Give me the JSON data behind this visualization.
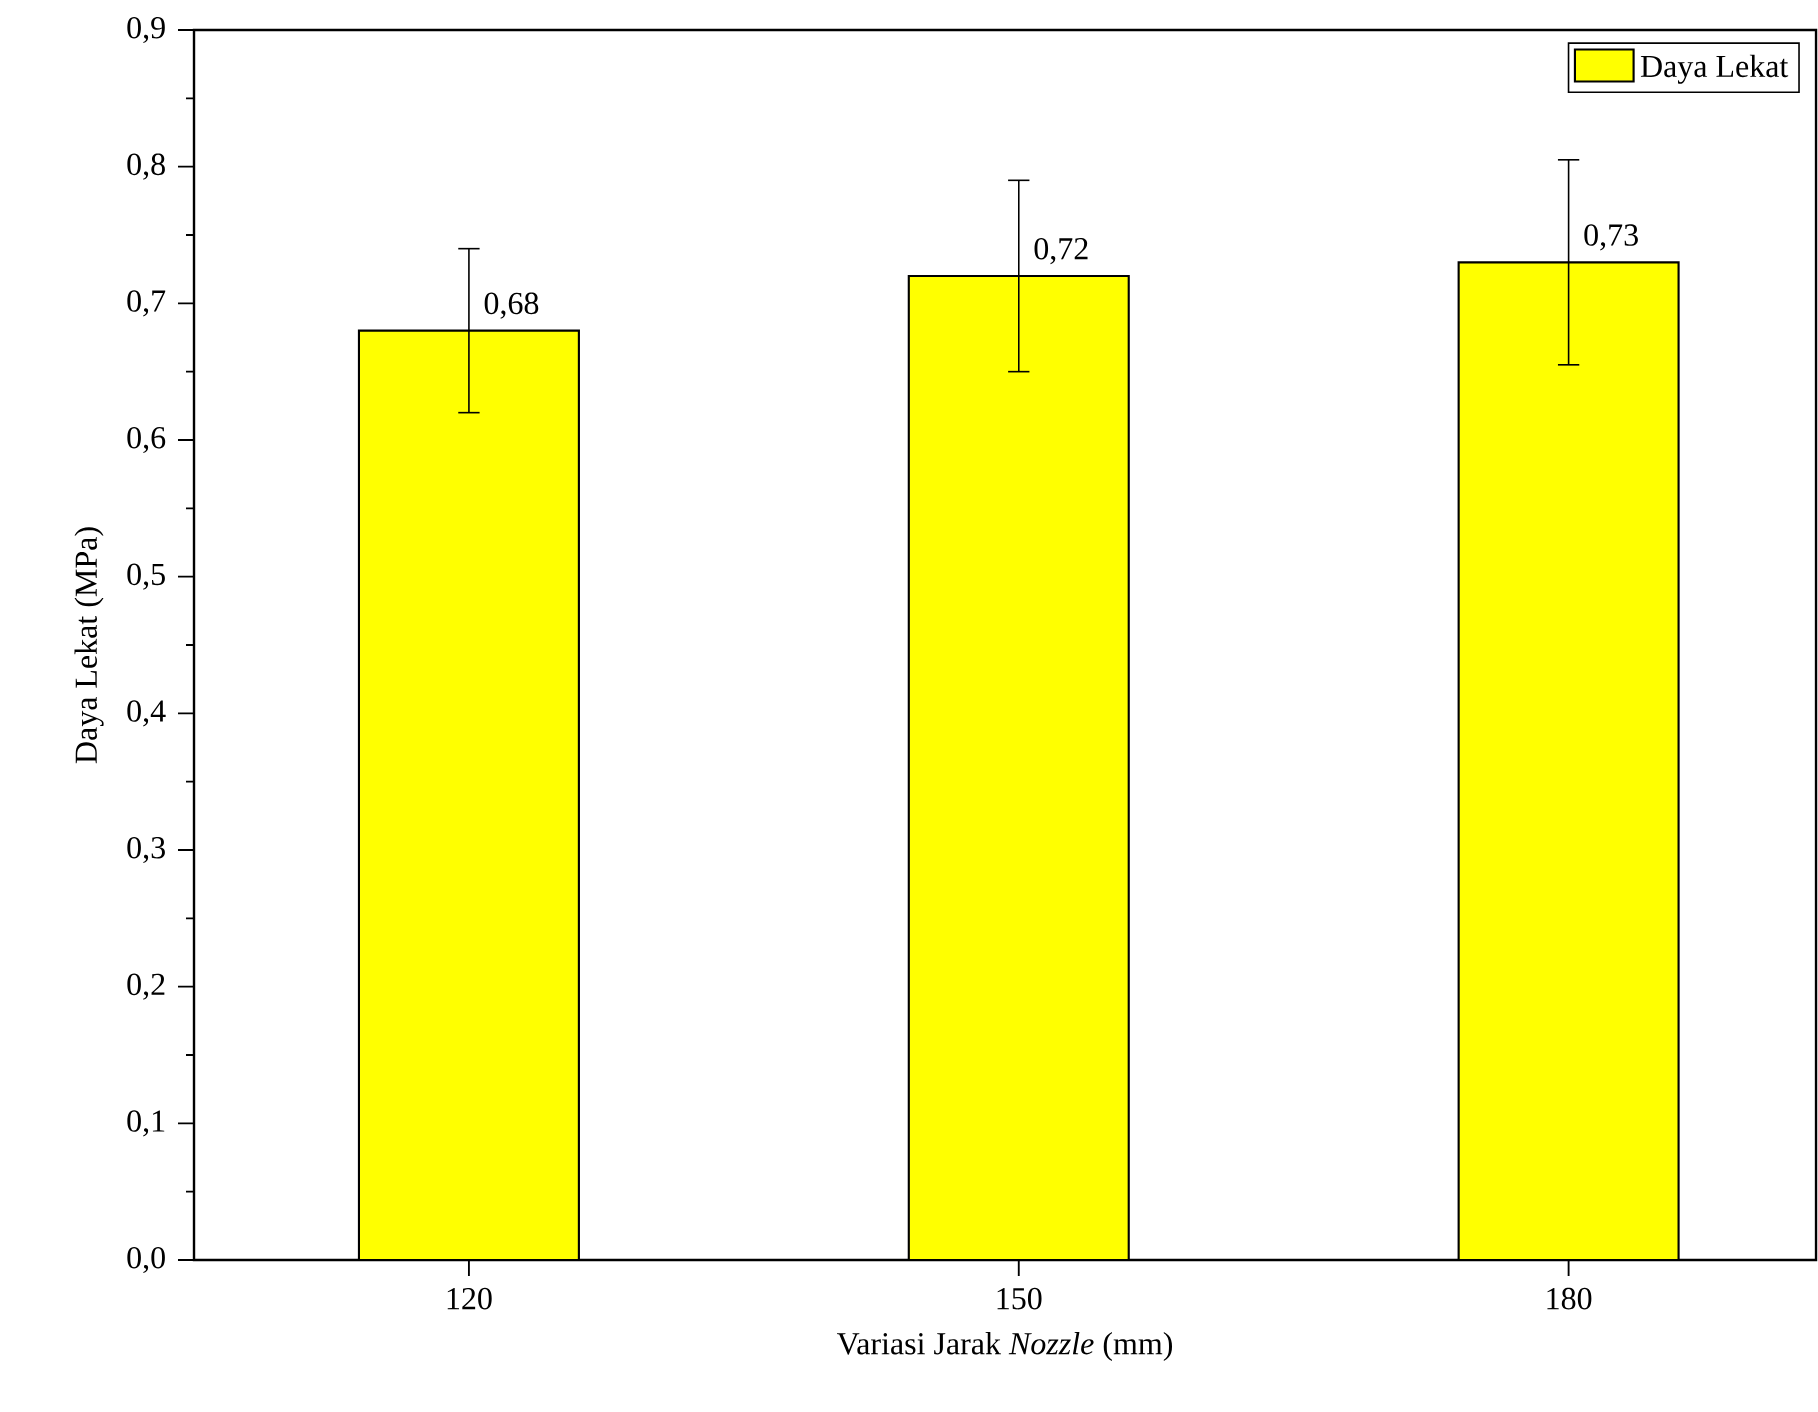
{
  "chart_data": {
    "type": "bar",
    "xlabel": "Variasi Jarak *Nozzle* (mm)",
    "ylabel": "Daya Lekat (MPa)",
    "categories": [
      "120",
      "150",
      "180"
    ],
    "series": [
      {
        "name": "Daya Lekat",
        "color": "#ffff00",
        "values": [
          0.68,
          0.72,
          0.73
        ],
        "errors": [
          0.06,
          0.07,
          0.075
        ],
        "value_labels": [
          "0,68",
          "0,72",
          "0,73"
        ]
      }
    ],
    "ylim": [
      0,
      0.9
    ],
    "yticks": [
      {
        "value": 0,
        "label": "0,0"
      },
      {
        "value": 0.1,
        "label": "0,1"
      },
      {
        "value": 0.2,
        "label": "0,2"
      },
      {
        "value": 0.3,
        "label": "0,3"
      },
      {
        "value": 0.4,
        "label": "0,4"
      },
      {
        "value": 0.5,
        "label": "0,5"
      },
      {
        "value": 0.6,
        "label": "0,6"
      },
      {
        "value": 0.7,
        "label": "0,7"
      },
      {
        "value": 0.8,
        "label": "0,8"
      },
      {
        "value": 0.9,
        "label": "0,9"
      }
    ],
    "grid": false,
    "legend": "top right"
  }
}
